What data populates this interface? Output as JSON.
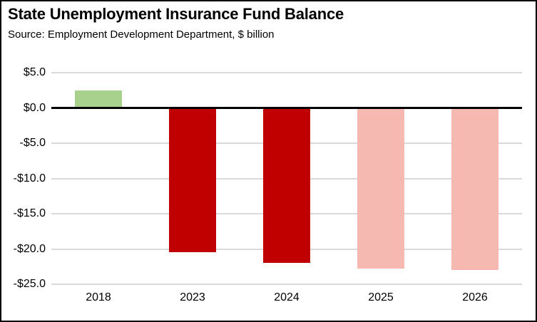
{
  "figure": {
    "title": "State Unemployment Insurance Fund Balance",
    "source_line": "Source:  Employment Development Department, $ billion"
  },
  "colors": {
    "positive_actual": "#A9D18E",
    "negative_actual": "#C00000",
    "negative_projected": "#F5B9B1",
    "gridline": "#D9D9D9",
    "zero_line": "#000000",
    "border": "#000000",
    "text": "#000000"
  },
  "chart_data": {
    "type": "bar",
    "title": "State Unemployment Insurance Fund Balance",
    "subtitle": "Source:  Employment Development Department, $ billion",
    "units": "$ billion",
    "categories": [
      "2018",
      "2023",
      "2024",
      "2025",
      "2026"
    ],
    "values": [
      2.5,
      -20.5,
      -22.0,
      -22.8,
      -23.0
    ],
    "bar_colors": [
      "#A9D18E",
      "#C00000",
      "#C00000",
      "#F5B9B1",
      "#F5B9B1"
    ],
    "ylim": [
      -25,
      5
    ],
    "yticks": [
      5,
      0,
      -5,
      -10,
      -15,
      -20,
      -25
    ],
    "ytick_labels": [
      "$5.0",
      "$0.0",
      "-$5.0",
      "-$10.0",
      "-$15.0",
      "-$20.0",
      "-$25.0"
    ],
    "grid": true,
    "legend": "none",
    "bar_width_fraction_of_slot": 0.5
  }
}
